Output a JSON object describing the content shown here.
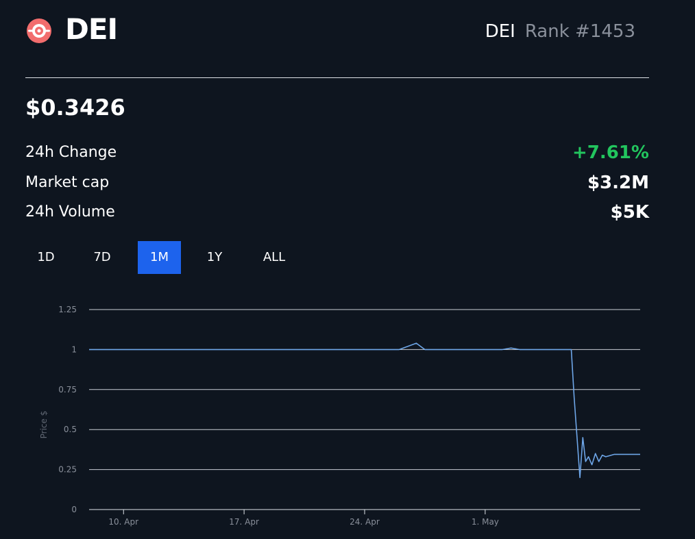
{
  "coin": {
    "name": "DEI",
    "symbol": "DEI",
    "rank": "Rank #1453",
    "logo_icon": "dei-logo-icon",
    "logo_color": "#f26d6d"
  },
  "price": "$0.3426",
  "stats": [
    {
      "label": "24h Change",
      "value": "+7.61%",
      "tone": "positive"
    },
    {
      "label": "Market cap",
      "value": "$3.2M",
      "tone": "neutral"
    },
    {
      "label": "24h Volume",
      "value": "$5K",
      "tone": "neutral"
    }
  ],
  "tabs": [
    {
      "label": "1D",
      "active": false
    },
    {
      "label": "7D",
      "active": false
    },
    {
      "label": "1M",
      "active": true
    },
    {
      "label": "1Y",
      "active": false
    },
    {
      "label": "ALL",
      "active": false
    }
  ],
  "colors": {
    "background": "#0e151f",
    "accent": "#1d63ed",
    "positive": "#22c55e",
    "line": "#6ea6e8",
    "grid": "#dfe3e8"
  },
  "chart_data": {
    "type": "line",
    "xlabel": "",
    "ylabel": "Price $",
    "ylim": [
      0,
      1.25
    ],
    "yticks": [
      0,
      0.25,
      0.5,
      0.75,
      1,
      1.25
    ],
    "ytick_labels": [
      "0",
      "0.25",
      "0.5",
      "0.75",
      "1",
      "1.25"
    ],
    "xlim": [
      "2023-04-08",
      "2023-05-10"
    ],
    "xticks": [
      "2023-04-10",
      "2023-04-17",
      "2023-04-24",
      "2023-05-01"
    ],
    "xtick_labels": [
      "10. Apr",
      "17. Apr",
      "24. Apr",
      "1. May"
    ],
    "grid": true,
    "legend": "none",
    "series": [
      {
        "x": [
          "2023-04-08",
          "2023-04-10",
          "2023-04-13",
          "2023-04-16",
          "2023-04-19",
          "2023-04-22",
          "2023-04-25",
          "2023-04-26",
          "2023-04-27",
          "2023-04-27",
          "2023-04-28",
          "2023-05-01",
          "2023-05-02",
          "2023-05-02",
          "2023-05-03",
          "2023-05-05",
          "2023-05-06",
          "2023-05-06",
          "2023-05-06",
          "2023-05-06",
          "2023-05-06",
          "2023-05-06",
          "2023-05-07",
          "2023-05-07",
          "2023-05-07",
          "2023-05-07",
          "2023-05-07",
          "2023-05-08",
          "2023-05-08",
          "2023-05-09",
          "2023-05-10"
        ],
        "y": [
          1.0,
          1.0,
          1.0,
          1.0,
          1.0,
          1.0,
          1.0,
          1.0,
          1.04,
          1.0,
          1.0,
          1.0,
          1.0,
          1.01,
          1.0,
          1.0,
          1.0,
          0.7,
          0.45,
          0.2,
          0.45,
          0.3,
          0.33,
          0.28,
          0.35,
          0.3,
          0.34,
          0.33,
          0.345,
          0.345,
          0.345
        ]
      }
    ]
  }
}
